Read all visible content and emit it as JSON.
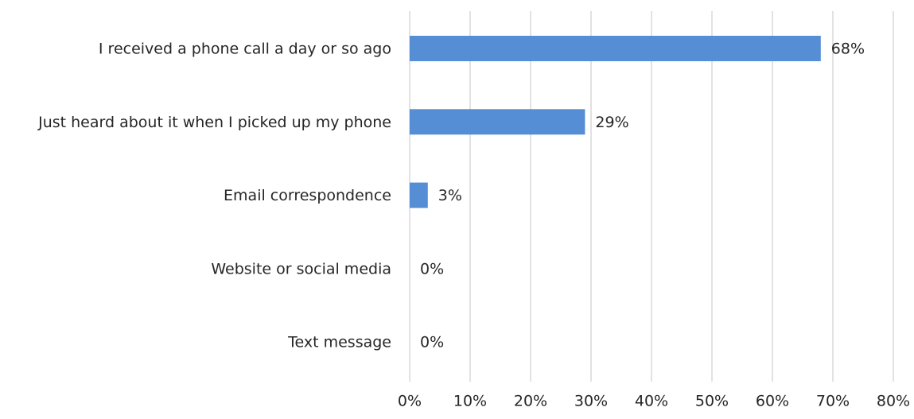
{
  "chart_data": {
    "type": "bar",
    "orientation": "horizontal",
    "title": "",
    "xlabel": "",
    "ylabel": "",
    "categories": [
      "I received a phone call a day or so ago",
      "Just heard about it when I picked up my phone",
      "Email correspondence",
      "Website or social media",
      "Text message"
    ],
    "values": [
      68,
      29,
      3,
      0,
      0
    ],
    "value_labels": [
      "68%",
      "29%",
      "3%",
      "0%",
      "0%"
    ],
    "xlim": [
      0,
      80
    ],
    "x_ticks": [
      0,
      10,
      20,
      30,
      40,
      50,
      60,
      70,
      80
    ],
    "x_tick_labels": [
      "0%",
      "10%",
      "20%",
      "30%",
      "40%",
      "50%",
      "60%",
      "70%",
      "80%"
    ],
    "grid": true,
    "legend": "none",
    "colors": {
      "bar": "#558ed5",
      "grid": "#d9d9d9",
      "text": "#262626"
    }
  }
}
